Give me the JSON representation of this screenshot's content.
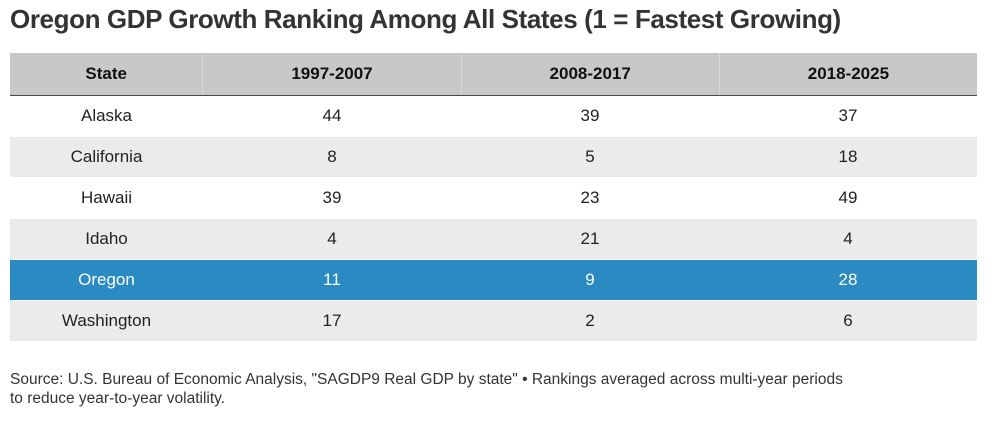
{
  "title": "Oregon GDP Growth Ranking Among All States (1 = Fastest Growing)",
  "chart_data": {
    "type": "table",
    "columns": [
      "State",
      "1997-2007",
      "2008-2017",
      "2018-2025"
    ],
    "rows": [
      {
        "state": "Alaska",
        "values": [
          "44",
          "39",
          "37"
        ]
      },
      {
        "state": "California",
        "values": [
          "8",
          "5",
          "18"
        ]
      },
      {
        "state": "Hawaii",
        "values": [
          "39",
          "23",
          "49"
        ]
      },
      {
        "state": "Idaho",
        "values": [
          "4",
          "21",
          "4"
        ]
      },
      {
        "state": "Oregon",
        "values": [
          "11",
          "9",
          "28"
        ],
        "highlighted": true
      },
      {
        "state": "Washington",
        "values": [
          "17",
          "2",
          "6"
        ]
      }
    ],
    "highlight_color": "#2a8ac2"
  },
  "source": "Source: U.S. Bureau of Economic Analysis, \"SAGDP9 Real GDP by state\" • Rankings averaged across multi-year periods to reduce year-to-year volatility."
}
